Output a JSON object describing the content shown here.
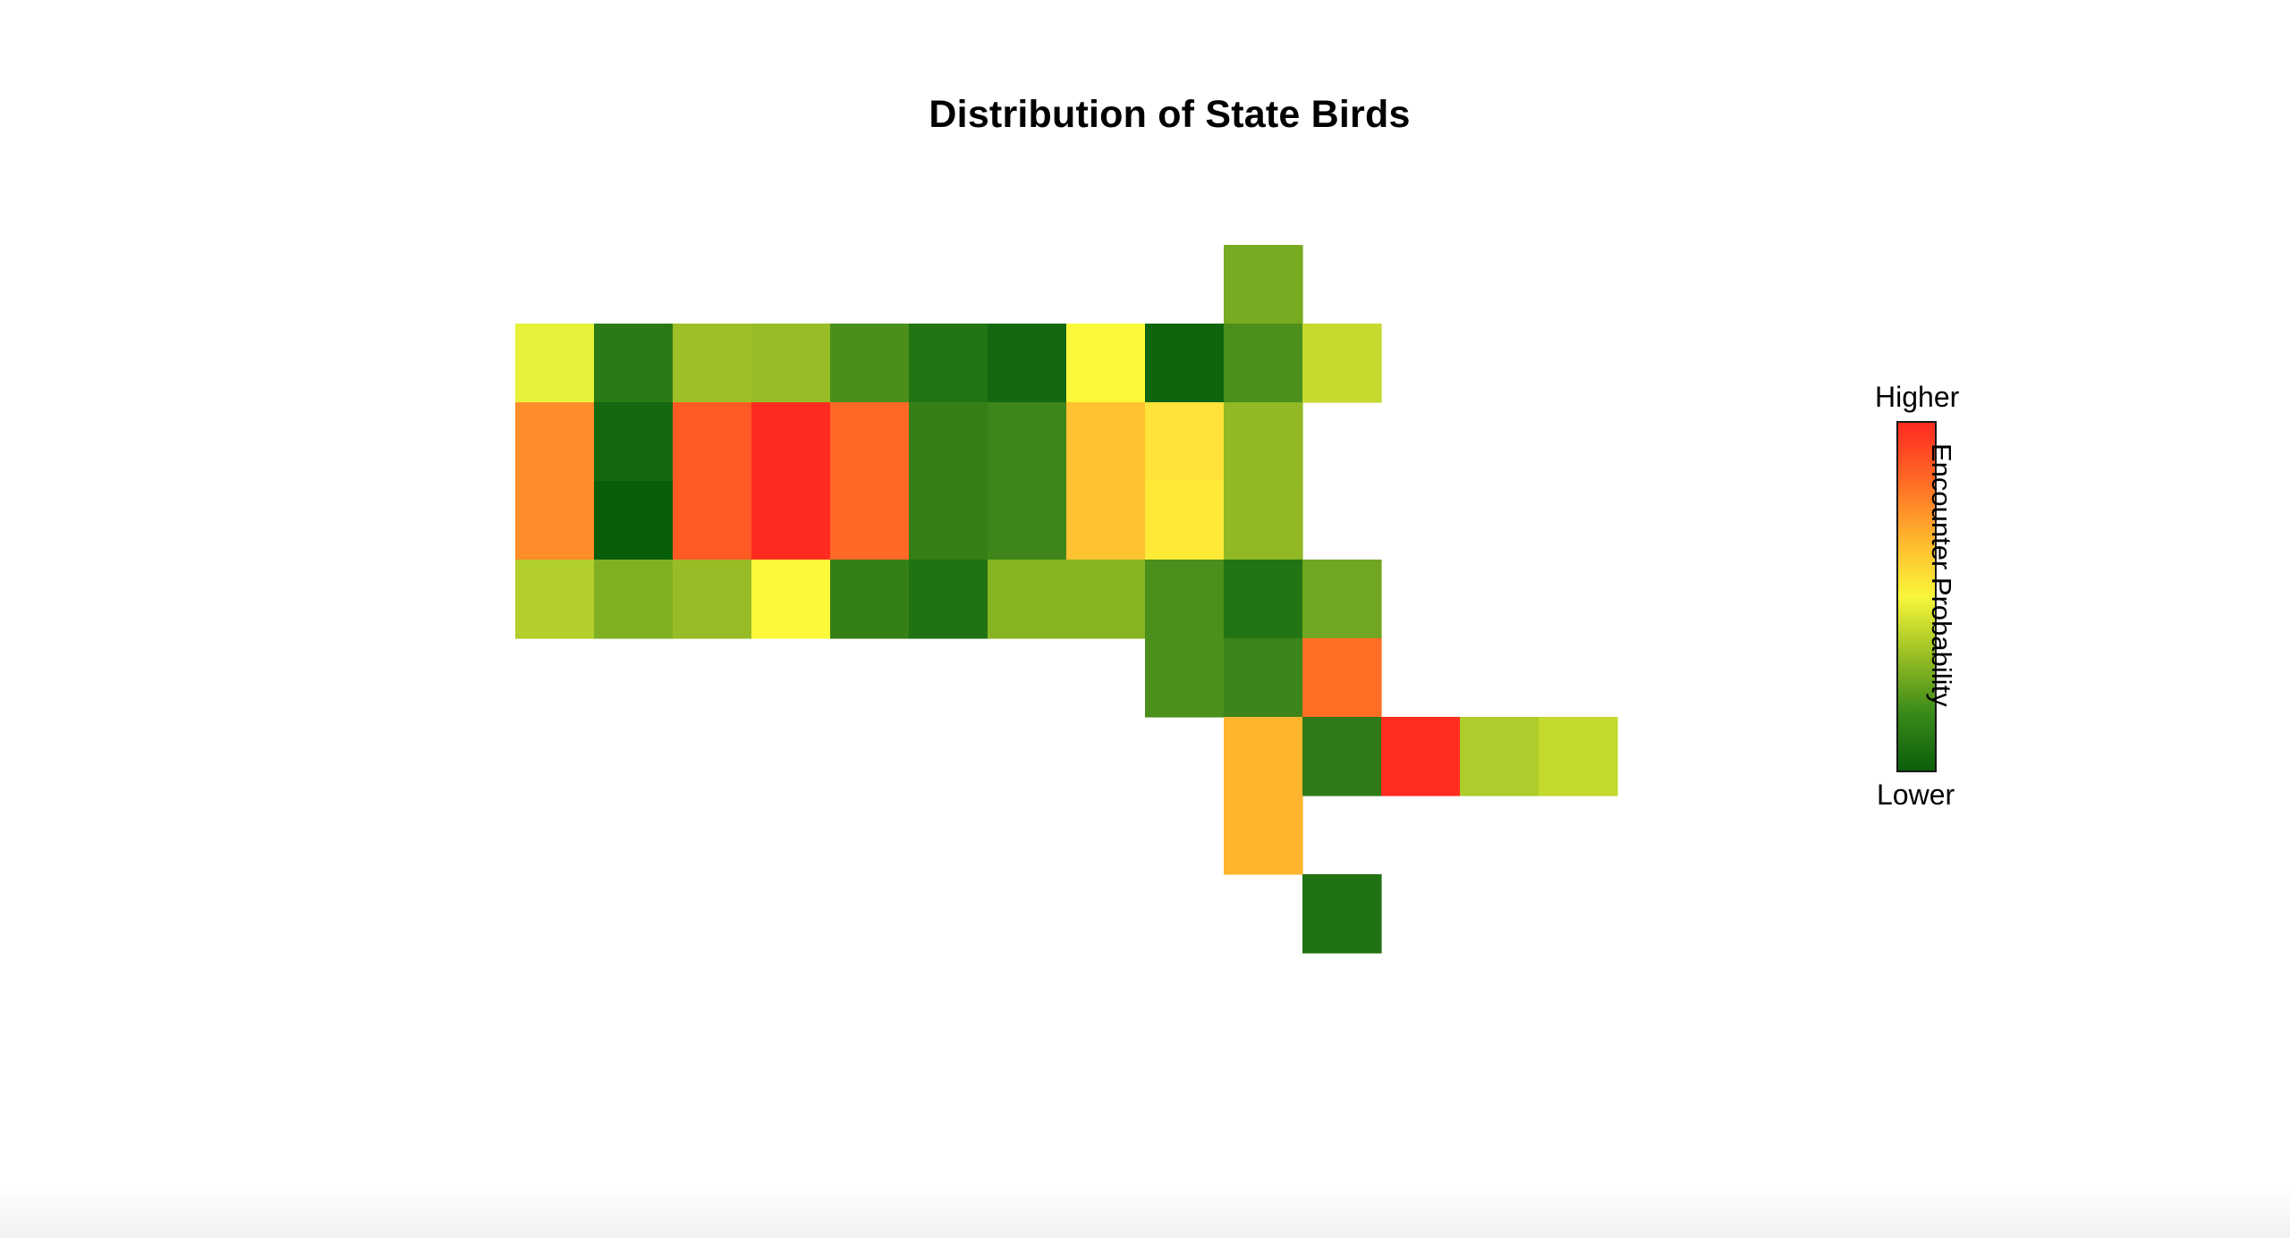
{
  "chart_data": {
    "type": "heatmap",
    "title": "Distribution of State Birds",
    "legend": {
      "title": "Encounter Probability",
      "high_label": "Higher",
      "low_label": "Lower",
      "placement": "right",
      "colorscale": [
        "#0b5e0b",
        "#3a8a1a",
        "#9abf24",
        "#f9f73a",
        "#ffb52e",
        "#ff6a25",
        "#ff2a20"
      ]
    },
    "grid": false,
    "cells": [
      {
        "row": 0,
        "col": 9,
        "color": "#78aa22"
      },
      {
        "row": 1,
        "col": 0,
        "color": "#e7f33a"
      },
      {
        "row": 1,
        "col": 1,
        "color": "#2c7a16"
      },
      {
        "row": 1,
        "col": 2,
        "color": "#9ebf27"
      },
      {
        "row": 1,
        "col": 3,
        "color": "#97bc25"
      },
      {
        "row": 1,
        "col": 4,
        "color": "#4a8e1c"
      },
      {
        "row": 1,
        "col": 5,
        "color": "#237413"
      },
      {
        "row": 1,
        "col": 6,
        "color": "#146810"
      },
      {
        "row": 1,
        "col": 7,
        "color": "#fbf83b"
      },
      {
        "row": 1,
        "col": 8,
        "color": "#0f650e"
      },
      {
        "row": 1,
        "col": 9,
        "color": "#4b8f1c"
      },
      {
        "row": 1,
        "col": 10,
        "color": "#c5d92e"
      },
      {
        "row": 2,
        "col": 0,
        "color": "#ff8d2a"
      },
      {
        "row": 2,
        "col": 1,
        "color": "#156710"
      },
      {
        "row": 2,
        "col": 2,
        "color": "#ff5a24"
      },
      {
        "row": 2,
        "col": 3,
        "color": "#ff2b20"
      },
      {
        "row": 2,
        "col": 4,
        "color": "#ff6825"
      },
      {
        "row": 2,
        "col": 5,
        "color": "#367f17"
      },
      {
        "row": 2,
        "col": 6,
        "color": "#3e861a"
      },
      {
        "row": 2,
        "col": 7,
        "color": "#ffc230"
      },
      {
        "row": 2,
        "col": 8,
        "color": "#ffe33a"
      },
      {
        "row": 2,
        "col": 9,
        "color": "#90b924"
      },
      {
        "row": 3,
        "col": 0,
        "color": "#ff8d2a"
      },
      {
        "row": 3,
        "col": 1,
        "color": "#085e0a"
      },
      {
        "row": 3,
        "col": 2,
        "color": "#ff5a24"
      },
      {
        "row": 3,
        "col": 3,
        "color": "#ff2b20"
      },
      {
        "row": 3,
        "col": 4,
        "color": "#ff6825"
      },
      {
        "row": 3,
        "col": 5,
        "color": "#367f17"
      },
      {
        "row": 3,
        "col": 6,
        "color": "#3e861a"
      },
      {
        "row": 3,
        "col": 7,
        "color": "#ffc230"
      },
      {
        "row": 3,
        "col": 8,
        "color": "#ffea38"
      },
      {
        "row": 3,
        "col": 9,
        "color": "#90b924"
      },
      {
        "row": 4,
        "col": 0,
        "color": "#b3cf2c"
      },
      {
        "row": 4,
        "col": 1,
        "color": "#80b022"
      },
      {
        "row": 4,
        "col": 2,
        "color": "#98bc26"
      },
      {
        "row": 4,
        "col": 3,
        "color": "#fcf93b"
      },
      {
        "row": 4,
        "col": 4,
        "color": "#357f17"
      },
      {
        "row": 4,
        "col": 5,
        "color": "#217213"
      },
      {
        "row": 4,
        "col": 6,
        "color": "#87b423"
      },
      {
        "row": 4,
        "col": 7,
        "color": "#87b423"
      },
      {
        "row": 4,
        "col": 8,
        "color": "#4b8f1c"
      },
      {
        "row": 4,
        "col": 9,
        "color": "#237413"
      },
      {
        "row": 4,
        "col": 10,
        "color": "#70a621"
      },
      {
        "row": 5,
        "col": 8,
        "color": "#4b8f1c"
      },
      {
        "row": 5,
        "col": 9,
        "color": "#3c851a"
      },
      {
        "row": 5,
        "col": 10,
        "color": "#ff6e25"
      },
      {
        "row": 6,
        "col": 9,
        "color": "#ffb52e"
      },
      {
        "row": 6,
        "col": 10,
        "color": "#2e7a16"
      },
      {
        "row": 6,
        "col": 11,
        "color": "#ff2d20"
      },
      {
        "row": 6,
        "col": 12,
        "color": "#aecc2b"
      },
      {
        "row": 6,
        "col": 13,
        "color": "#c4d92e"
      },
      {
        "row": 7,
        "col": 9,
        "color": "#ffb52e"
      },
      {
        "row": 8,
        "col": 10,
        "color": "#217213"
      }
    ]
  }
}
